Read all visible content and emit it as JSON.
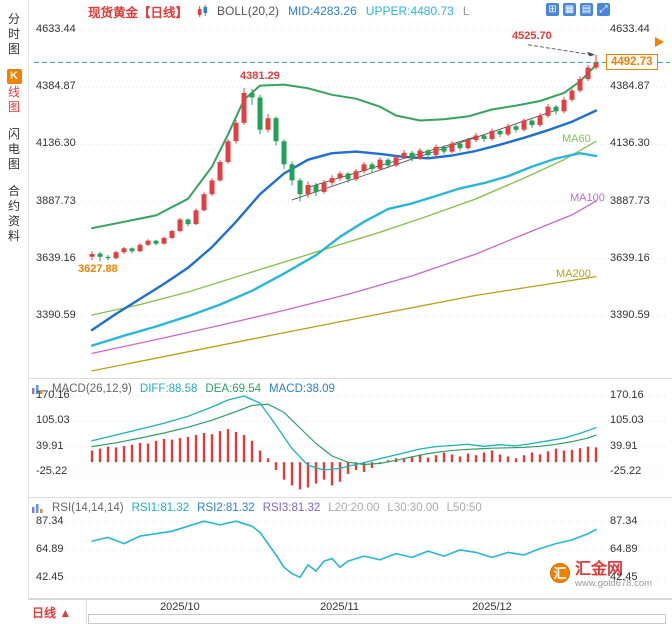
{
  "sidebar": {
    "items": [
      {
        "label": "分时图"
      },
      {
        "prefix": "K",
        "label": "线图",
        "active": true
      },
      {
        "label": "闪电图"
      },
      {
        "label": "合约资料"
      }
    ]
  },
  "header": {
    "title": "现货黄金【日线】",
    "indicator": "BOLL(20,2)",
    "mid": "MID:4283.26",
    "upper": "UPPER:4480.73",
    "lower_truncated": "L",
    "toolbar_icons": [
      {
        "name": "grid-layout-icon",
        "glyph": "⊞"
      },
      {
        "name": "multi-panel-icon",
        "glyph": "▦"
      },
      {
        "name": "chart-type-icon",
        "glyph": "▤"
      },
      {
        "name": "expand-icon",
        "glyph": "⤢"
      }
    ]
  },
  "price_tag": {
    "value": "4492.73"
  },
  "annotations": {
    "high": "4525.70",
    "peak": "4381.29",
    "low": "3627.88",
    "ma60": "MA60",
    "ma100": "MA100",
    "ma200": "MA200"
  },
  "macd_header": {
    "name": "MACD(26,12,9)",
    "diff": "DIFF:88.58",
    "dea": "DEA:69.54",
    "macd": "MACD:38.09"
  },
  "rsi_header": {
    "name": "RSI(14,14,14)",
    "rsi1": "RSI1:81.32",
    "rsi2": "RSI2:81.32",
    "rsi3": "RSI3:81.32",
    "l20": "L20:20.00",
    "l30": "L30:30.00",
    "l50": "L50:50"
  },
  "bottom": {
    "period": "日线",
    "arrow": "▲",
    "dates": [
      "2025/10",
      "2025/11",
      "2025/12"
    ]
  },
  "watermark": {
    "logo_char": "汇",
    "name": "汇金网",
    "url": "www.gold678.com"
  },
  "colors": {
    "up": "#e14040",
    "down": "#23a05a",
    "orange": "#f08200",
    "blue": "#2b7fd4",
    "cyan": "#29b6d8",
    "teal": "#1fb0b8",
    "red": "#e03c3c",
    "boll_upper": "#35a360",
    "boll_mid": "#1e6fd0",
    "ma60": "#8cc152",
    "ma100": "#c969c9",
    "ma200": "#b5a11a",
    "dea": "#2e9e66",
    "grid": "#e3e3e3",
    "dashed_price": "#2aa87a"
  },
  "chart_data": {
    "type": "candlestick",
    "symbol": "现货黄金",
    "period": "日线",
    "x_ticks": [
      {
        "index": 9,
        "label": "2025/10"
      },
      {
        "index": 29,
        "label": "2025/11"
      },
      {
        "index": 48,
        "label": "2025/12"
      }
    ],
    "main": {
      "y_axis": [
        4633.44,
        4384.87,
        4136.3,
        3887.73,
        3639.16,
        3390.59
      ],
      "boll": {
        "period": 20,
        "dev": 2,
        "mid": 4283.26,
        "upper": 4480.73
      },
      "last_price": 4492.73,
      "high_label": 4525.7,
      "peak_label": 4381.29,
      "low_label": 3627.88,
      "candles": [
        [
          3648,
          3672,
          3634,
          3660
        ],
        [
          3662,
          3669,
          3627.88,
          3648
        ],
        [
          3648,
          3656,
          3633,
          3642
        ],
        [
          3642,
          3674,
          3638,
          3668
        ],
        [
          3668,
          3691,
          3660,
          3685
        ],
        [
          3685,
          3689,
          3663,
          3672
        ],
        [
          3672,
          3706,
          3668,
          3700
        ],
        [
          3700,
          3724,
          3694,
          3718
        ],
        [
          3718,
          3722,
          3697,
          3705
        ],
        [
          3705,
          3736,
          3700,
          3730
        ],
        [
          3730,
          3766,
          3724,
          3760
        ],
        [
          3760,
          3817,
          3754,
          3810
        ],
        [
          3810,
          3815,
          3780,
          3790
        ],
        [
          3790,
          3858,
          3786,
          3850
        ],
        [
          3850,
          3928,
          3845,
          3920
        ],
        [
          3920,
          3989,
          3912,
          3980
        ],
        [
          3980,
          4068,
          3974,
          4060
        ],
        [
          4060,
          4160,
          4052,
          4150
        ],
        [
          4150,
          4242,
          4140,
          4230
        ],
        [
          4230,
          4381.29,
          4222,
          4360
        ],
        [
          4360,
          4378,
          4308,
          4340
        ],
        [
          4340,
          4352,
          4180,
          4200
        ],
        [
          4200,
          4268,
          4188,
          4250
        ],
        [
          4250,
          4258,
          4132,
          4150
        ],
        [
          4150,
          4158,
          4030,
          4050
        ],
        [
          4050,
          4062,
          3958,
          3980
        ],
        [
          3980,
          3990,
          3889,
          3920
        ],
        [
          3920,
          3975,
          3904,
          3960
        ],
        [
          3960,
          3968,
          3912,
          3930
        ],
        [
          3930,
          3982,
          3922,
          3970
        ],
        [
          3970,
          4002,
          3958,
          3990
        ],
        [
          3990,
          4020,
          3978,
          4010
        ],
        [
          4010,
          4016,
          3970,
          3985
        ],
        [
          3985,
          4030,
          3976,
          4020
        ],
        [
          4020,
          4060,
          4010,
          4050
        ],
        [
          4050,
          4058,
          4016,
          4030
        ],
        [
          4030,
          4080,
          4022,
          4070
        ],
        [
          4070,
          4076,
          4032,
          4045
        ],
        [
          4045,
          4090,
          4038,
          4080
        ],
        [
          4080,
          4112,
          4072,
          4100
        ],
        [
          4100,
          4108,
          4062,
          4075
        ],
        [
          4075,
          4120,
          4068,
          4110
        ],
        [
          4110,
          4116,
          4078,
          4090
        ],
        [
          4090,
          4136,
          4082,
          4125
        ],
        [
          4125,
          4132,
          4094,
          4105
        ],
        [
          4105,
          4150,
          4098,
          4140
        ],
        [
          4140,
          4146,
          4108,
          4120
        ],
        [
          4120,
          4165,
          4112,
          4155
        ],
        [
          4155,
          4186,
          4146,
          4175
        ],
        [
          4175,
          4182,
          4148,
          4160
        ],
        [
          4160,
          4205,
          4152,
          4195
        ],
        [
          4195,
          4202,
          4168,
          4180
        ],
        [
          4180,
          4226,
          4172,
          4215
        ],
        [
          4215,
          4222,
          4188,
          4200
        ],
        [
          4200,
          4250,
          4192,
          4240
        ],
        [
          4240,
          4246,
          4208,
          4220
        ],
        [
          4220,
          4272,
          4212,
          4260
        ],
        [
          4260,
          4312,
          4252,
          4300
        ],
        [
          4300,
          4308,
          4266,
          4280
        ],
        [
          4280,
          4342,
          4272,
          4330
        ],
        [
          4330,
          4378,
          4322,
          4370
        ],
        [
          4370,
          4432,
          4362,
          4420
        ],
        [
          4420,
          4482,
          4412,
          4470
        ],
        [
          4470,
          4525.7,
          4462,
          4492.73
        ]
      ],
      "overlays": {
        "boll_upper": [
          [
            0,
            3772
          ],
          [
            4,
            3800
          ],
          [
            8,
            3828
          ],
          [
            12,
            3900
          ],
          [
            15,
            4040
          ],
          [
            17,
            4180
          ],
          [
            19,
            4330
          ],
          [
            21,
            4392
          ],
          [
            24,
            4396
          ],
          [
            27,
            4380
          ],
          [
            30,
            4352
          ],
          [
            33,
            4335
          ],
          [
            36,
            4300
          ],
          [
            38,
            4262
          ],
          [
            41,
            4240
          ],
          [
            44,
            4246
          ],
          [
            47,
            4258
          ],
          [
            50,
            4288
          ],
          [
            53,
            4305
          ],
          [
            56,
            4325
          ],
          [
            59,
            4360
          ],
          [
            61,
            4410
          ],
          [
            63,
            4480.73
          ]
        ],
        "boll_mid": [
          [
            0,
            3330
          ],
          [
            3,
            3400
          ],
          [
            6,
            3465
          ],
          [
            9,
            3530
          ],
          [
            12,
            3600
          ],
          [
            15,
            3690
          ],
          [
            18,
            3800
          ],
          [
            21,
            3920
          ],
          [
            24,
            4010
          ],
          [
            27,
            4070
          ],
          [
            30,
            4098
          ],
          [
            33,
            4105
          ],
          [
            36,
            4095
          ],
          [
            39,
            4082
          ],
          [
            42,
            4076
          ],
          [
            45,
            4088
          ],
          [
            48,
            4108
          ],
          [
            51,
            4135
          ],
          [
            54,
            4165
          ],
          [
            57,
            4198
          ],
          [
            60,
            4235
          ],
          [
            63,
            4283.26
          ]
        ],
        "boll_lower": [
          [
            0,
            3262
          ],
          [
            4,
            3305
          ],
          [
            8,
            3345
          ],
          [
            12,
            3390
          ],
          [
            16,
            3440
          ],
          [
            20,
            3500
          ],
          [
            24,
            3575
          ],
          [
            28,
            3655
          ],
          [
            31,
            3735
          ],
          [
            34,
            3800
          ],
          [
            37,
            3855
          ],
          [
            40,
            3880
          ],
          [
            43,
            3912
          ],
          [
            46,
            3945
          ],
          [
            49,
            3968
          ],
          [
            52,
            3998
          ],
          [
            55,
            4040
          ],
          [
            58,
            4075
          ],
          [
            61,
            4098
          ],
          [
            63,
            4085.79
          ]
        ],
        "ma60": [
          [
            0,
            3395
          ],
          [
            6,
            3440
          ],
          [
            12,
            3495
          ],
          [
            18,
            3560
          ],
          [
            24,
            3625
          ],
          [
            30,
            3690
          ],
          [
            36,
            3755
          ],
          [
            42,
            3825
          ],
          [
            48,
            3900
          ],
          [
            54,
            3990
          ],
          [
            59,
            4070
          ],
          [
            63,
            4150
          ]
        ],
        "ma100": [
          [
            0,
            3228
          ],
          [
            8,
            3288
          ],
          [
            16,
            3350
          ],
          [
            24,
            3415
          ],
          [
            32,
            3485
          ],
          [
            40,
            3565
          ],
          [
            48,
            3660
          ],
          [
            55,
            3760
          ],
          [
            60,
            3830
          ],
          [
            63,
            3890
          ]
        ],
        "ma200": [
          [
            0,
            3152
          ],
          [
            12,
            3235
          ],
          [
            24,
            3318
          ],
          [
            36,
            3400
          ],
          [
            48,
            3480
          ],
          [
            63,
            3562
          ]
        ]
      },
      "trendlines": [
        [
          25,
          3895,
          58,
          4285
        ],
        [
          27,
          3950,
          48,
          4170
        ]
      ]
    },
    "macd": {
      "params": "26,12,9",
      "diff": 88.58,
      "dea": 69.54,
      "macd": 38.09,
      "y_axis": [
        170.16,
        105.03,
        39.91,
        -25.22
      ],
      "hist": [
        30,
        35,
        40,
        38,
        42,
        45,
        50,
        48,
        55,
        60,
        58,
        62,
        65,
        70,
        75,
        72,
        80,
        85,
        78,
        70,
        55,
        30,
        10,
        -20,
        -45,
        -60,
        -70,
        -65,
        -55,
        -45,
        -60,
        -50,
        -30,
        -20,
        -25,
        -15,
        -5,
        5,
        10,
        8,
        15,
        20,
        12,
        18,
        25,
        20,
        15,
        22,
        18,
        25,
        30,
        20,
        15,
        10,
        18,
        25,
        20,
        28,
        35,
        30,
        32,
        36,
        40,
        38.09
      ],
      "diff_line": [
        [
          0,
          55
        ],
        [
          3,
          70
        ],
        [
          6,
          85
        ],
        [
          9,
          100
        ],
        [
          12,
          118
        ],
        [
          15,
          142
        ],
        [
          17,
          160
        ],
        [
          19,
          170.16
        ],
        [
          21,
          152
        ],
        [
          23,
          95
        ],
        [
          25,
          35
        ],
        [
          27,
          -8
        ],
        [
          29,
          -20
        ],
        [
          31,
          -16
        ],
        [
          33,
          -6
        ],
        [
          35,
          4
        ],
        [
          37,
          14
        ],
        [
          39,
          24
        ],
        [
          41,
          34
        ],
        [
          43,
          40
        ],
        [
          45,
          43
        ],
        [
          47,
          46
        ],
        [
          49,
          41
        ],
        [
          51,
          45
        ],
        [
          53,
          42
        ],
        [
          55,
          48
        ],
        [
          57,
          55
        ],
        [
          59,
          62
        ],
        [
          61,
          74
        ],
        [
          63,
          88.58
        ]
      ],
      "dea_line": [
        [
          0,
          40
        ],
        [
          3,
          50
        ],
        [
          6,
          62
        ],
        [
          9,
          75
        ],
        [
          12,
          90
        ],
        [
          15,
          108
        ],
        [
          18,
          130
        ],
        [
          20,
          146
        ],
        [
          22,
          149
        ],
        [
          24,
          128
        ],
        [
          26,
          88
        ],
        [
          28,
          48
        ],
        [
          30,
          16
        ],
        [
          32,
          0
        ],
        [
          34,
          -6
        ],
        [
          36,
          -3
        ],
        [
          38,
          5
        ],
        [
          40,
          14
        ],
        [
          42,
          22
        ],
        [
          44,
          28
        ],
        [
          46,
          32
        ],
        [
          48,
          34
        ],
        [
          50,
          36
        ],
        [
          52,
          37
        ],
        [
          54,
          38
        ],
        [
          56,
          41
        ],
        [
          58,
          46
        ],
        [
          60,
          53
        ],
        [
          62,
          62
        ],
        [
          63,
          69.54
        ]
      ]
    },
    "rsi": {
      "params": "14,14,14",
      "rsi1": 81.32,
      "rsi2": 81.32,
      "rsi3": 81.32,
      "levels": {
        "l20": 20.0,
        "l30": 30.0,
        "l50": 50
      },
      "y_axis": [
        87.34,
        64.89,
        42.45
      ],
      "line": [
        [
          0,
          72
        ],
        [
          2,
          75
        ],
        [
          4,
          70
        ],
        [
          6,
          76
        ],
        [
          8,
          78
        ],
        [
          10,
          80
        ],
        [
          12,
          84
        ],
        [
          14,
          88
        ],
        [
          16,
          85
        ],
        [
          18,
          88
        ],
        [
          20,
          84
        ],
        [
          21,
          79
        ],
        [
          22,
          70
        ],
        [
          23,
          61
        ],
        [
          24,
          51
        ],
        [
          25,
          46
        ],
        [
          26,
          43
        ],
        [
          27,
          53
        ],
        [
          28,
          48
        ],
        [
          29,
          56
        ],
        [
          30,
          58
        ],
        [
          31,
          51
        ],
        [
          32,
          56
        ],
        [
          34,
          60
        ],
        [
          36,
          57
        ],
        [
          38,
          62
        ],
        [
          40,
          59
        ],
        [
          42,
          64
        ],
        [
          44,
          60
        ],
        [
          46,
          65
        ],
        [
          48,
          63
        ],
        [
          50,
          59
        ],
        [
          52,
          63
        ],
        [
          54,
          61
        ],
        [
          56,
          66
        ],
        [
          58,
          70
        ],
        [
          60,
          73
        ],
        [
          62,
          78
        ],
        [
          63,
          81.32
        ]
      ]
    }
  }
}
